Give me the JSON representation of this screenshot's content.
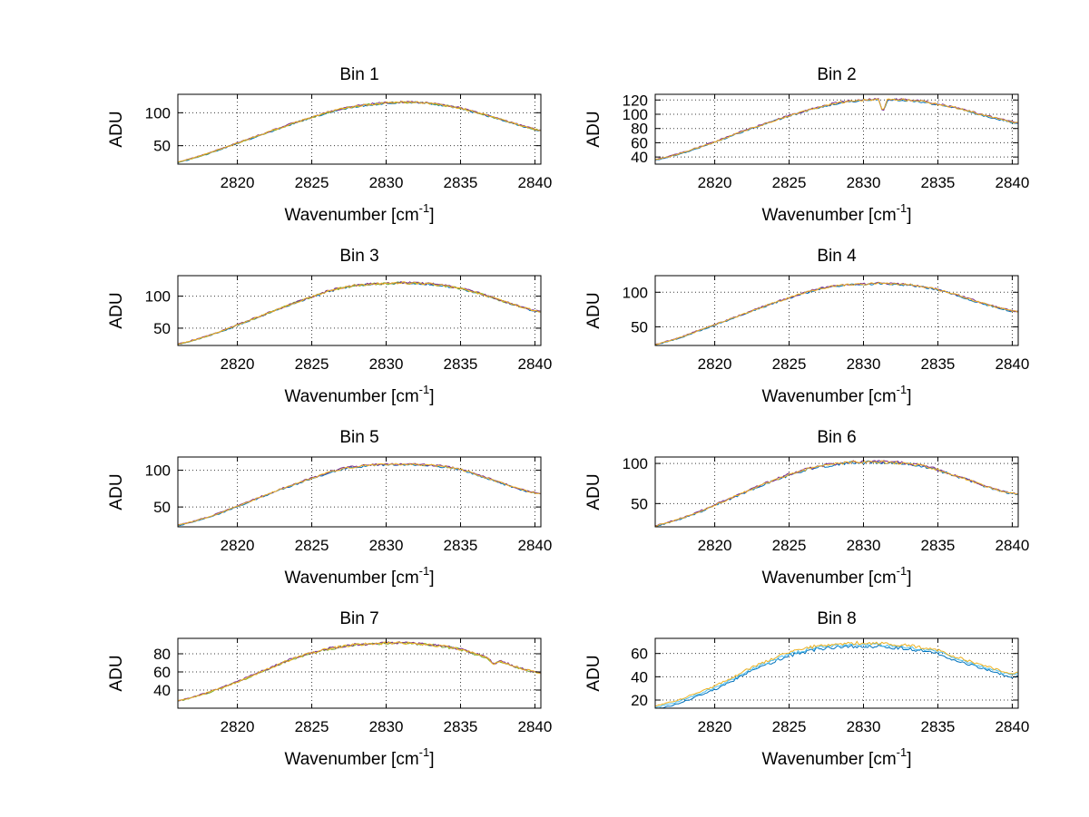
{
  "figure": {
    "background": "#ffffff"
  },
  "chart_data": {
    "type": "line",
    "layout": {
      "rows": 4,
      "cols": 2,
      "grid": true,
      "grid_style": "dotted",
      "legend": "none"
    },
    "colors": {
      "axis": "#000000",
      "grid": "#3a3a3a",
      "background": "#ffffff"
    },
    "palette": {
      "blue": "#0072BD",
      "gold": "#EDB120",
      "purple": "#7E2F8E",
      "green": "#77AC30",
      "cyan": "#4DBEEE"
    },
    "xlabel_pre": "Wavenumber [cm",
    "xlabel_sup": "-1",
    "xlabel_post": "]",
    "ylabel": "ADU",
    "xlim": [
      2816,
      2840.4
    ],
    "xticks": [
      2820,
      2825,
      2830,
      2835,
      2840
    ],
    "subplots": [
      {
        "title": "Bin 1",
        "ylabel": "ADU",
        "ylim": [
          22,
          128
        ],
        "yticks": [
          50,
          100
        ],
        "noise_amp": 1.6,
        "series": [
          {
            "name": "trace-blue",
            "color": "#0072BD",
            "offset": -0.6
          },
          {
            "name": "trace-green",
            "color": "#77AC30",
            "offset": -0.2
          },
          {
            "name": "trace-purple",
            "color": "#7E2F8E",
            "offset": 0.4
          },
          {
            "name": "trace-gold",
            "color": "#EDB120",
            "offset": 0
          }
        ],
        "base_points": [
          [
            2816,
            25
          ],
          [
            2817,
            31
          ],
          [
            2818,
            38
          ],
          [
            2819,
            46
          ],
          [
            2820,
            54
          ],
          [
            2821,
            62
          ],
          [
            2822,
            70
          ],
          [
            2823,
            78
          ],
          [
            2824,
            86
          ],
          [
            2825,
            93
          ],
          [
            2826,
            100
          ],
          [
            2827,
            106
          ],
          [
            2828,
            110
          ],
          [
            2829,
            113
          ],
          [
            2830,
            115
          ],
          [
            2831,
            116
          ],
          [
            2832,
            116
          ],
          [
            2833,
            114
          ],
          [
            2834,
            111
          ],
          [
            2835,
            107
          ],
          [
            2836,
            101
          ],
          [
            2837,
            95
          ],
          [
            2838,
            88
          ],
          [
            2839,
            81
          ],
          [
            2840,
            75
          ],
          [
            2840.4,
            73
          ]
        ]
      },
      {
        "title": "Bin 2",
        "ylabel": "ADU",
        "ylim": [
          30,
          128
        ],
        "yticks": [
          40,
          60,
          80,
          100,
          120
        ],
        "noise_amp": 1.5,
        "series": [
          {
            "name": "trace-blue",
            "color": "#0072BD",
            "offset": -0.6
          },
          {
            "name": "trace-purple",
            "color": "#7E2F8E",
            "offset": 0.4
          },
          {
            "name": "trace-gold",
            "color": "#EDB120",
            "offset": 0
          }
        ],
        "base_points": [
          [
            2816,
            36
          ],
          [
            2817,
            41
          ],
          [
            2818,
            47
          ],
          [
            2819,
            54
          ],
          [
            2820,
            61
          ],
          [
            2821,
            69
          ],
          [
            2822,
            77
          ],
          [
            2823,
            84
          ],
          [
            2824,
            91
          ],
          [
            2825,
            98
          ],
          [
            2826,
            104
          ],
          [
            2827,
            110
          ],
          [
            2828,
            115
          ],
          [
            2829,
            118
          ],
          [
            2830,
            120
          ],
          [
            2831,
            121
          ],
          [
            2831.3,
            103
          ],
          [
            2831.6,
            120
          ],
          [
            2832,
            121
          ],
          [
            2833,
            120
          ],
          [
            2834,
            118
          ],
          [
            2835,
            114
          ],
          [
            2836,
            110
          ],
          [
            2837,
            105
          ],
          [
            2838,
            99
          ],
          [
            2839,
            94
          ],
          [
            2840,
            89
          ],
          [
            2840.4,
            88
          ]
        ]
      },
      {
        "title": "Bin 3",
        "ylabel": "ADU",
        "ylim": [
          23,
          132
        ],
        "yticks": [
          50,
          100
        ],
        "noise_amp": 1.9,
        "series": [
          {
            "name": "trace-blue",
            "color": "#0072BD",
            "offset": -0.6
          },
          {
            "name": "trace-green",
            "color": "#77AC30",
            "offset": -0.2
          },
          {
            "name": "trace-purple",
            "color": "#7E2F8E",
            "offset": 0.4
          },
          {
            "name": "trace-gold",
            "color": "#EDB120",
            "offset": 0
          }
        ],
        "base_points": [
          [
            2816,
            25
          ],
          [
            2817,
            31
          ],
          [
            2818,
            38
          ],
          [
            2819,
            46
          ],
          [
            2820,
            55
          ],
          [
            2821,
            64
          ],
          [
            2822,
            73
          ],
          [
            2823,
            82
          ],
          [
            2824,
            91
          ],
          [
            2825,
            99
          ],
          [
            2826,
            107
          ],
          [
            2827,
            113
          ],
          [
            2828,
            117
          ],
          [
            2829,
            119
          ],
          [
            2830,
            120
          ],
          [
            2831,
            121
          ],
          [
            2832,
            120
          ],
          [
            2833,
            119
          ],
          [
            2834,
            116
          ],
          [
            2835,
            112
          ],
          [
            2836,
            106
          ],
          [
            2837,
            99
          ],
          [
            2838,
            91
          ],
          [
            2839,
            84
          ],
          [
            2840,
            77
          ],
          [
            2840.4,
            76
          ]
        ]
      },
      {
        "title": "Bin 4",
        "ylabel": "ADU",
        "ylim": [
          23,
          124
        ],
        "yticks": [
          50,
          100
        ],
        "noise_amp": 1.6,
        "series": [
          {
            "name": "trace-blue",
            "color": "#0072BD",
            "offset": -0.6
          },
          {
            "name": "trace-purple",
            "color": "#7E2F8E",
            "offset": 0.4
          },
          {
            "name": "trace-gold",
            "color": "#EDB120",
            "offset": 0
          }
        ],
        "base_points": [
          [
            2816,
            24
          ],
          [
            2817,
            30
          ],
          [
            2818,
            37
          ],
          [
            2819,
            45
          ],
          [
            2820,
            53
          ],
          [
            2821,
            61
          ],
          [
            2822,
            69
          ],
          [
            2823,
            77
          ],
          [
            2824,
            85
          ],
          [
            2825,
            92
          ],
          [
            2826,
            99
          ],
          [
            2827,
            105
          ],
          [
            2828,
            109
          ],
          [
            2829,
            111
          ],
          [
            2830,
            112
          ],
          [
            2831,
            113
          ],
          [
            2832,
            112
          ],
          [
            2833,
            111
          ],
          [
            2834,
            108
          ],
          [
            2835,
            104
          ],
          [
            2836,
            98
          ],
          [
            2837,
            91
          ],
          [
            2838,
            84
          ],
          [
            2839,
            78
          ],
          [
            2840,
            73
          ],
          [
            2840.4,
            72
          ]
        ]
      },
      {
        "title": "Bin 5",
        "ylabel": "ADU",
        "ylim": [
          23,
          118
        ],
        "yticks": [
          50,
          100
        ],
        "noise_amp": 1.5,
        "series": [
          {
            "name": "trace-blue",
            "color": "#0072BD",
            "offset": -0.6
          },
          {
            "name": "trace-purple",
            "color": "#7E2F8E",
            "offset": 0.4
          },
          {
            "name": "trace-gold",
            "color": "#EDB120",
            "offset": 0
          }
        ],
        "base_points": [
          [
            2816,
            25
          ],
          [
            2817,
            30
          ],
          [
            2818,
            36
          ],
          [
            2819,
            43
          ],
          [
            2820,
            51
          ],
          [
            2821,
            59
          ],
          [
            2822,
            67
          ],
          [
            2823,
            75
          ],
          [
            2824,
            82
          ],
          [
            2825,
            89
          ],
          [
            2826,
            96
          ],
          [
            2827,
            102
          ],
          [
            2828,
            105
          ],
          [
            2829,
            107
          ],
          [
            2830,
            108
          ],
          [
            2831,
            108
          ],
          [
            2832,
            108
          ],
          [
            2833,
            107
          ],
          [
            2834,
            105
          ],
          [
            2835,
            101
          ],
          [
            2836,
            95
          ],
          [
            2837,
            88
          ],
          [
            2838,
            81
          ],
          [
            2839,
            74
          ],
          [
            2840,
            69
          ],
          [
            2840.4,
            68
          ]
        ]
      },
      {
        "title": "Bin 6",
        "ylabel": "ADU",
        "ylim": [
          21,
          108
        ],
        "yticks": [
          50,
          100
        ],
        "noise_amp": 1.9,
        "series": [
          {
            "name": "trace-blue",
            "color": "#0072BD",
            "offset": -0.6
          },
          {
            "name": "trace-purple",
            "color": "#7E2F8E",
            "offset": 0.4
          },
          {
            "name": "trace-gold",
            "color": "#EDB120",
            "offset": 0
          }
        ],
        "base_points": [
          [
            2816,
            22
          ],
          [
            2817,
            27
          ],
          [
            2818,
            33
          ],
          [
            2819,
            40
          ],
          [
            2820,
            48
          ],
          [
            2821,
            56
          ],
          [
            2822,
            64
          ],
          [
            2823,
            72
          ],
          [
            2824,
            79
          ],
          [
            2825,
            86
          ],
          [
            2826,
            92
          ],
          [
            2827,
            96
          ],
          [
            2828,
            99
          ],
          [
            2829,
            101
          ],
          [
            2830,
            102
          ],
          [
            2831,
            102
          ],
          [
            2832,
            101
          ],
          [
            2833,
            100
          ],
          [
            2834,
            97
          ],
          [
            2835,
            92
          ],
          [
            2836,
            86
          ],
          [
            2837,
            80
          ],
          [
            2838,
            73
          ],
          [
            2839,
            67
          ],
          [
            2840,
            63
          ],
          [
            2840.4,
            62
          ]
        ]
      },
      {
        "title": "Bin 7",
        "ylabel": "ADU",
        "ylim": [
          20,
          97
        ],
        "yticks": [
          40,
          60,
          80
        ],
        "noise_amp": 1.6,
        "series": [
          {
            "name": "trace-green",
            "color": "#77AC30",
            "offset": -0.3
          },
          {
            "name": "trace-purple",
            "color": "#7E2F8E",
            "offset": 0.3
          },
          {
            "name": "trace-gold",
            "color": "#EDB120",
            "offset": 0
          }
        ],
        "base_points": [
          [
            2816,
            28
          ],
          [
            2817,
            32
          ],
          [
            2818,
            37
          ],
          [
            2819,
            43
          ],
          [
            2820,
            49
          ],
          [
            2821,
            56
          ],
          [
            2822,
            63
          ],
          [
            2823,
            70
          ],
          [
            2824,
            76
          ],
          [
            2825,
            81
          ],
          [
            2826,
            85
          ],
          [
            2827,
            88
          ],
          [
            2828,
            90
          ],
          [
            2829,
            91
          ],
          [
            2830,
            92
          ],
          [
            2831,
            92
          ],
          [
            2832,
            91
          ],
          [
            2833,
            90
          ],
          [
            2834,
            88
          ],
          [
            2835,
            85
          ],
          [
            2836,
            80
          ],
          [
            2836.8,
            76
          ],
          [
            2837.2,
            68
          ],
          [
            2837.6,
            72
          ],
          [
            2838,
            70
          ],
          [
            2839,
            64
          ],
          [
            2840,
            60
          ],
          [
            2840.4,
            59
          ]
        ]
      },
      {
        "title": "Bin 8",
        "ylabel": "ADU",
        "ylim": [
          13,
          73
        ],
        "yticks": [
          20,
          40,
          60
        ],
        "noise_amp": 1.4,
        "series": [
          {
            "name": "trace-blue",
            "color": "#0072BD",
            "offset": -3
          },
          {
            "name": "trace-cyan",
            "color": "#4DBEEE",
            "offset": -1.5
          },
          {
            "name": "trace-gold",
            "color": "#EDB120",
            "offset": 0
          }
        ],
        "base_points": [
          [
            2816,
            15
          ],
          [
            2817,
            18
          ],
          [
            2818,
            22
          ],
          [
            2819,
            27
          ],
          [
            2820,
            32
          ],
          [
            2821,
            38
          ],
          [
            2822,
            45
          ],
          [
            2823,
            51
          ],
          [
            2824,
            56
          ],
          [
            2825,
            61
          ],
          [
            2826,
            64
          ],
          [
            2827,
            67
          ],
          [
            2828,
            68
          ],
          [
            2829,
            69
          ],
          [
            2830,
            69
          ],
          [
            2831,
            69
          ],
          [
            2832,
            68
          ],
          [
            2833,
            67
          ],
          [
            2834,
            65
          ],
          [
            2835,
            63
          ],
          [
            2836,
            58
          ],
          [
            2837,
            54
          ],
          [
            2838,
            50
          ],
          [
            2839,
            46
          ],
          [
            2840,
            43
          ],
          [
            2840.4,
            44
          ]
        ]
      }
    ]
  }
}
